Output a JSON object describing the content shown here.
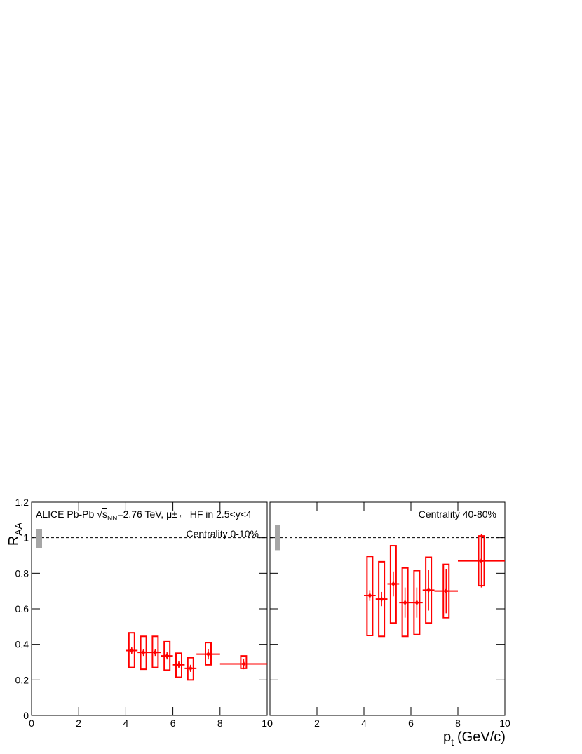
{
  "x_label": {
    "main": "p",
    "sub": "t",
    "unit": "(GeV/c)"
  },
  "y_label": {
    "main": "R",
    "sub": "AA"
  },
  "chart_data": [
    {
      "type": "scatter",
      "title": {
        "prefix": "ALICE Pb-Pb",
        "root": "s",
        "sub": "NN",
        "rest": "=2.76 TeV, μ±← HF in 2.5<y<4"
      },
      "annotation": "Centrality 0-10%",
      "x": [
        4.25,
        4.75,
        5.25,
        5.75,
        6.25,
        6.75,
        7.5,
        9
      ],
      "xerr": [
        0.25,
        0.25,
        0.25,
        0.25,
        0.25,
        0.25,
        0.5,
        1
      ],
      "values": [
        0.365,
        0.355,
        0.355,
        0.335,
        0.285,
        0.265,
        0.345,
        0.29
      ],
      "stat_errors": [
        0.02,
        0.02,
        0.02,
        0.02,
        0.02,
        0.02,
        0.03,
        0.03
      ],
      "syst_low": [
        0.27,
        0.26,
        0.27,
        0.255,
        0.215,
        0.2,
        0.285,
        0.265
      ],
      "syst_high": [
        0.465,
        0.445,
        0.445,
        0.415,
        0.35,
        0.325,
        0.41,
        0.335
      ],
      "norm_box": [
        0.94,
        1.05
      ],
      "reference_line": 1,
      "color": "#ff0000",
      "norm_color": "#a6a6a6",
      "xlim": [
        0,
        10
      ],
      "ylim": [
        0,
        1.2
      ],
      "xticks": [
        0,
        2,
        4,
        6,
        8,
        10
      ],
      "yticks": [
        0,
        0.2,
        0.4,
        0.6,
        0.8,
        1,
        1.2
      ]
    },
    {
      "type": "scatter",
      "annotation": "Centrality 40-80%",
      "x": [
        4.25,
        4.75,
        5.25,
        5.75,
        6.25,
        6.75,
        7.5,
        9
      ],
      "xerr": [
        0.25,
        0.25,
        0.25,
        0.25,
        0.25,
        0.25,
        0.5,
        1
      ],
      "values": [
        0.675,
        0.655,
        0.74,
        0.635,
        0.635,
        0.705,
        0.7,
        0.87
      ],
      "stat_errors": [
        0.03,
        0.04,
        0.07,
        0.085,
        0.085,
        0.115,
        0.125,
        0.15
      ],
      "syst_low": [
        0.45,
        0.445,
        0.52,
        0.445,
        0.455,
        0.52,
        0.55,
        0.73
      ],
      "syst_high": [
        0.895,
        0.865,
        0.955,
        0.83,
        0.815,
        0.89,
        0.85,
        1.01
      ],
      "norm_box": [
        0.93,
        1.07
      ],
      "reference_line": 1,
      "color": "#ff0000",
      "norm_color": "#a6a6a6",
      "xlim": [
        0,
        10
      ],
      "ylim": [
        0,
        1.2
      ],
      "xticks": [
        0,
        2,
        4,
        6,
        8,
        10
      ],
      "yticks": [
        0,
        0.2,
        0.4,
        0.6,
        0.8,
        1,
        1.2
      ]
    }
  ]
}
